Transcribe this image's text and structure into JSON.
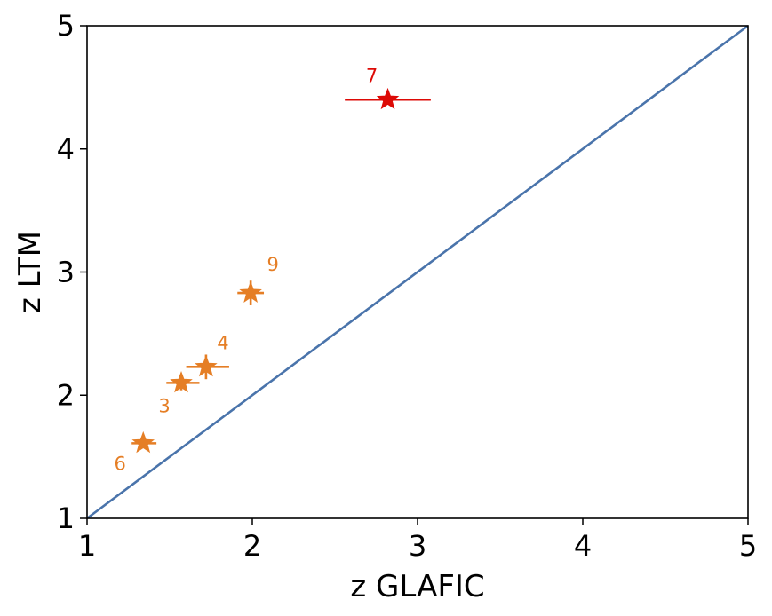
{
  "chart_data": {
    "type": "scatter",
    "xlabel": "z GLAFIC",
    "ylabel": "z LTM",
    "xlim": [
      1,
      5
    ],
    "ylim": [
      1,
      5
    ],
    "xticks": [
      1,
      2,
      3,
      4,
      5
    ],
    "yticks": [
      1,
      2,
      3,
      4,
      5
    ],
    "grid": false,
    "reference_line": {
      "x": [
        1,
        5
      ],
      "y": [
        1,
        5
      ],
      "color": "#4a74ab"
    },
    "points": [
      {
        "label": "7",
        "x": 2.82,
        "y": 4.4,
        "xerr": [
          0.26,
          0.26
        ],
        "yerr": [
          0.04,
          0.04
        ],
        "color": "#dd0a06"
      },
      {
        "label": "9",
        "x": 1.99,
        "y": 2.83,
        "xerr": [
          0.08,
          0.08
        ],
        "yerr": [
          0.1,
          0.1
        ],
        "color": "#e57e25"
      },
      {
        "label": "4",
        "x": 1.72,
        "y": 2.23,
        "xerr": [
          0.12,
          0.14
        ],
        "yerr": [
          0.1,
          0.1
        ],
        "color": "#e57e25"
      },
      {
        "label": "3",
        "x": 1.57,
        "y": 2.1,
        "xerr": [
          0.09,
          0.11
        ],
        "yerr": [
          0.06,
          0.06
        ],
        "color": "#e57e25"
      },
      {
        "label": "6",
        "x": 1.34,
        "y": 1.61,
        "xerr": [
          0.07,
          0.08
        ],
        "yerr": [
          0.04,
          0.04
        ],
        "color": "#e57e25"
      }
    ]
  }
}
